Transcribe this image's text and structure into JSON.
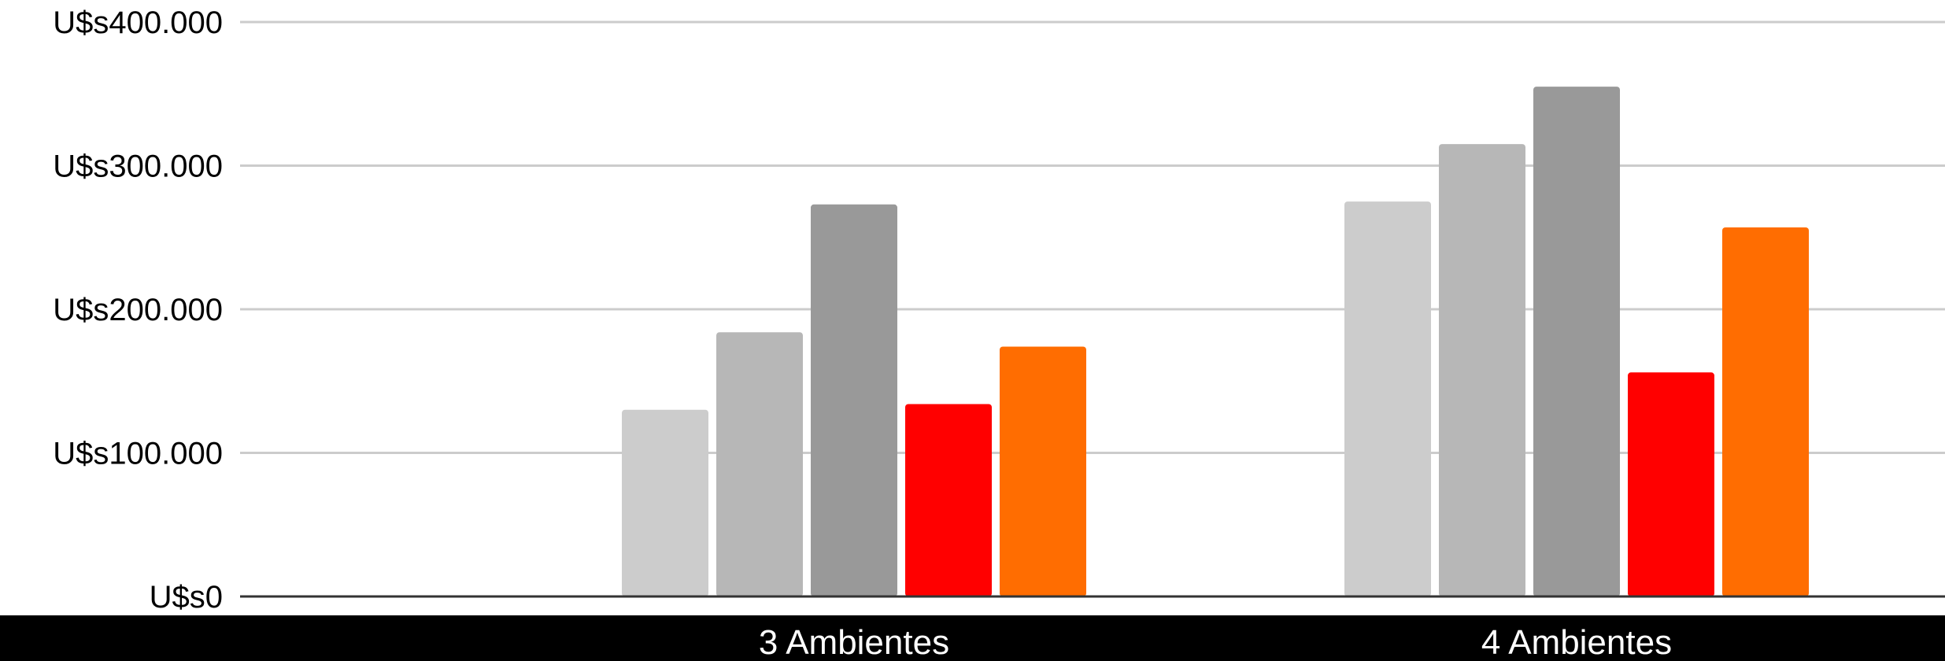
{
  "chart_data": {
    "type": "bar",
    "title": "",
    "xlabel": "",
    "ylabel": "",
    "ylim": [
      0,
      400000
    ],
    "yticks": [
      {
        "value": 0,
        "label": "U$s0"
      },
      {
        "value": 100000,
        "label": "U$s100.000"
      },
      {
        "value": 200000,
        "label": "U$s200.000"
      },
      {
        "value": 300000,
        "label": "U$s300.000"
      },
      {
        "value": 400000,
        "label": "U$s400.000"
      }
    ],
    "categories": [
      "3 Ambientes",
      "4 Ambientes"
    ],
    "series": [
      {
        "color": "#cccccc",
        "values": [
          130000,
          275000
        ]
      },
      {
        "color": "#b7b7b7",
        "values": [
          184000,
          315000
        ]
      },
      {
        "color": "#999999",
        "values": [
          273000,
          355000
        ]
      },
      {
        "color": "#ff0000",
        "values": [
          134000,
          156000
        ]
      },
      {
        "color": "#ff6d01",
        "values": [
          174000,
          257000
        ]
      }
    ],
    "grid": true,
    "legend": "none"
  },
  "colors": {
    "grid": "#cccccc",
    "baseline": "#333333",
    "x_axis_band": "#000000"
  }
}
